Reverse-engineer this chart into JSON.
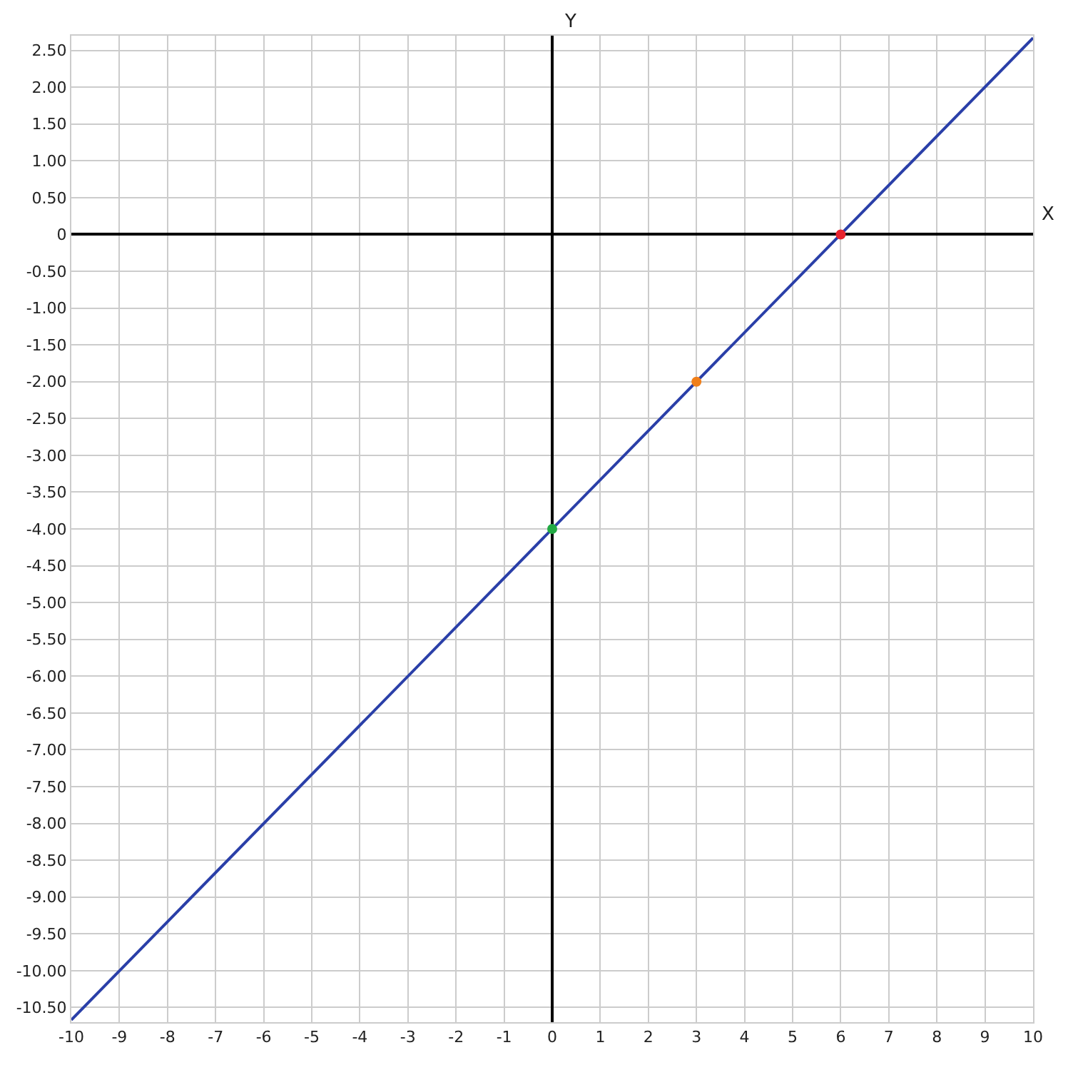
{
  "chart_data": {
    "type": "line",
    "xlabel": "X",
    "ylabel": "Y",
    "x": [
      -10,
      10
    ],
    "series": [
      {
        "color": "#2a3fa8",
        "values": [
          -10.67,
          2.67
        ],
        "marker": "none"
      },
      {
        "type": "scatter",
        "x": [
          0,
          3,
          6
        ],
        "values": [
          -4,
          -2,
          0
        ],
        "colors": [
          "#22aa44",
          "#f07f1a",
          "#e8242f"
        ],
        "marker": "circle"
      }
    ],
    "xlim": [
      -10,
      10
    ],
    "ylim": [
      -10.7,
      2.7
    ],
    "xticks": [
      -10,
      -9,
      -8,
      -7,
      -6,
      -5,
      -4,
      -3,
      -2,
      -1,
      0,
      1,
      2,
      3,
      4,
      5,
      6,
      7,
      8,
      9,
      10
    ],
    "yticks": [
      {
        "value": 2.5,
        "label": "2.50"
      },
      {
        "value": 2,
        "label": "2.00"
      },
      {
        "value": 1.5,
        "label": "1.50"
      },
      {
        "value": 1,
        "label": "1.00"
      },
      {
        "value": 0.5,
        "label": "0.50"
      },
      0,
      {
        "value": -0.5,
        "label": "-0.50"
      },
      {
        "value": -1,
        "label": "-1.00"
      },
      {
        "value": -1.5,
        "label": "-1.50"
      },
      {
        "value": -2,
        "label": "-2.00"
      },
      {
        "value": -2.5,
        "label": "-2.50"
      },
      {
        "value": -3,
        "label": "-3.00"
      },
      {
        "value": -3.5,
        "label": "-3.50"
      },
      {
        "value": -4,
        "label": "-4.00"
      },
      {
        "value": -4.5,
        "label": "-4.50"
      },
      {
        "value": -5,
        "label": "-5.00"
      },
      {
        "value": -5.5,
        "label": "-5.50"
      },
      {
        "value": -6,
        "label": "-6.00"
      },
      {
        "value": -6.5,
        "label": "-6.50"
      },
      {
        "value": -7,
        "label": "-7.00"
      },
      {
        "value": -7.5,
        "label": "-7.50"
      },
      {
        "value": -8,
        "label": "-8.00"
      },
      {
        "value": -8.5,
        "label": "-8.50"
      },
      {
        "value": -9,
        "label": "-9.00"
      },
      {
        "value": -9.5,
        "label": "-9.50"
      },
      {
        "value": -10,
        "label": "-10.00"
      },
      {
        "value": -10.5,
        "label": "-10.50"
      }
    ],
    "grid": true,
    "legend": false,
    "line_style": "solid"
  }
}
